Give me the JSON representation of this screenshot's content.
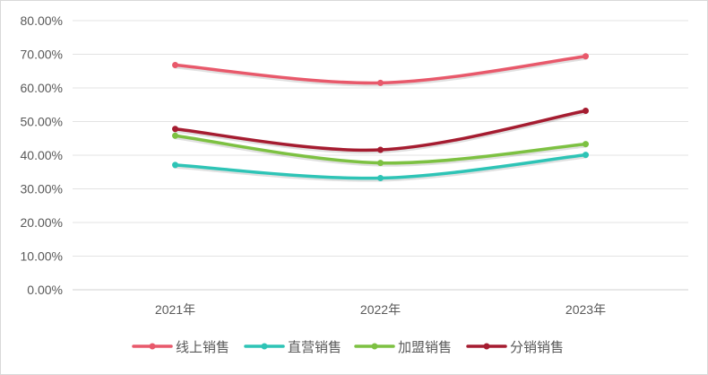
{
  "chart_data": {
    "type": "line",
    "title": "",
    "xlabel": "",
    "ylabel": "",
    "categories": [
      "2021年",
      "2022年",
      "2023年"
    ],
    "ylim": [
      0,
      0.8
    ],
    "y_ticks": [
      "0.00%",
      "10.00%",
      "20.00%",
      "30.00%",
      "40.00%",
      "50.00%",
      "60.00%",
      "70.00%",
      "80.00%"
    ],
    "grid": true,
    "smooth": true,
    "legend_position": "bottom",
    "series": [
      {
        "name": "线上销售",
        "color": "#e8596b",
        "values": [
          0.668,
          0.615,
          0.694
        ]
      },
      {
        "name": "直营销售",
        "color": "#2ec4b6",
        "values": [
          0.371,
          0.332,
          0.401
        ]
      },
      {
        "name": "加盟销售",
        "color": "#7dc142",
        "values": [
          0.458,
          0.377,
          0.433
        ]
      },
      {
        "name": "分销销售",
        "color": "#a51c30",
        "values": [
          0.478,
          0.416,
          0.532
        ]
      }
    ]
  }
}
